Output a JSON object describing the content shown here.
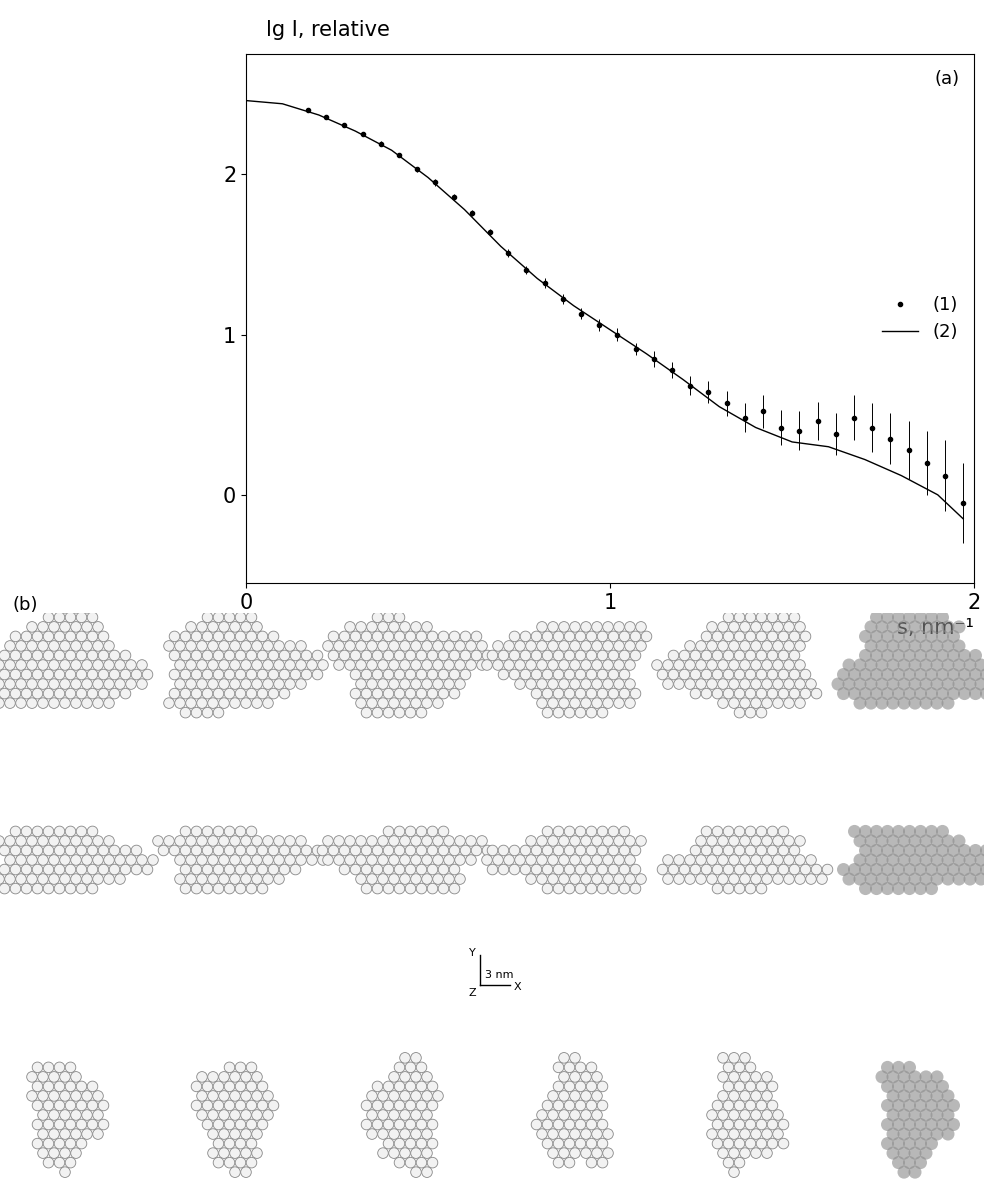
{
  "chart_data": {
    "type": "scatter",
    "panel_label": "(a)",
    "y_label": "lg I, relative",
    "x_label": "s, nm⁻¹",
    "xlim": [
      0,
      2
    ],
    "xticks": [
      0,
      1,
      2
    ],
    "ylim": [
      -0.55,
      2.75
    ],
    "yticks": [
      0,
      1,
      2
    ],
    "legend": "center right",
    "series": [
      {
        "name": "(1)",
        "type": "scatter",
        "color": "#000000",
        "marker": "o",
        "x": [
          0.17,
          0.22,
          0.27,
          0.32,
          0.37,
          0.42,
          0.47,
          0.52,
          0.57,
          0.62,
          0.67,
          0.72,
          0.77,
          0.82,
          0.87,
          0.92,
          0.97,
          1.02,
          1.07,
          1.12,
          1.17,
          1.22,
          1.27,
          1.32,
          1.37,
          1.42,
          1.47,
          1.52,
          1.57,
          1.62,
          1.67,
          1.72,
          1.77,
          1.82,
          1.87,
          1.92,
          1.97
        ],
        "values": [
          2.4,
          2.36,
          2.31,
          2.25,
          2.19,
          2.12,
          2.03,
          1.95,
          1.86,
          1.76,
          1.64,
          1.51,
          1.4,
          1.32,
          1.22,
          1.13,
          1.06,
          1.0,
          0.91,
          0.85,
          0.78,
          0.68,
          0.64,
          0.57,
          0.48,
          0.52,
          0.42,
          0.4,
          0.46,
          0.38,
          0.48,
          0.42,
          0.35,
          0.28,
          0.2,
          0.12,
          -0.05
        ],
        "errors": [
          0.01,
          0.01,
          0.01,
          0.01,
          0.015,
          0.015,
          0.015,
          0.02,
          0.02,
          0.02,
          0.02,
          0.025,
          0.025,
          0.03,
          0.03,
          0.035,
          0.035,
          0.04,
          0.04,
          0.05,
          0.05,
          0.06,
          0.07,
          0.08,
          0.09,
          0.1,
          0.11,
          0.12,
          0.12,
          0.13,
          0.14,
          0.15,
          0.16,
          0.18,
          0.2,
          0.22,
          0.25
        ]
      },
      {
        "name": "(2)",
        "type": "line",
        "color": "#000000",
        "line_style": "solid",
        "x": [
          0,
          0.1,
          0.2,
          0.3,
          0.4,
          0.5,
          0.6,
          0.7,
          0.8,
          0.9,
          1.0,
          1.1,
          1.2,
          1.3,
          1.4,
          1.5,
          1.6,
          1.7,
          1.8,
          1.9,
          1.97
        ],
        "values": [
          2.46,
          2.44,
          2.37,
          2.27,
          2.15,
          1.98,
          1.78,
          1.55,
          1.35,
          1.18,
          1.03,
          0.88,
          0.72,
          0.55,
          0.42,
          0.33,
          0.3,
          0.22,
          0.12,
          0.0,
          -0.15
        ]
      }
    ]
  },
  "panel_b": {
    "label": "(b)",
    "scale_bar": {
      "text": "3 nm",
      "axis_labels": [
        "Y",
        "X",
        "Z"
      ]
    }
  }
}
